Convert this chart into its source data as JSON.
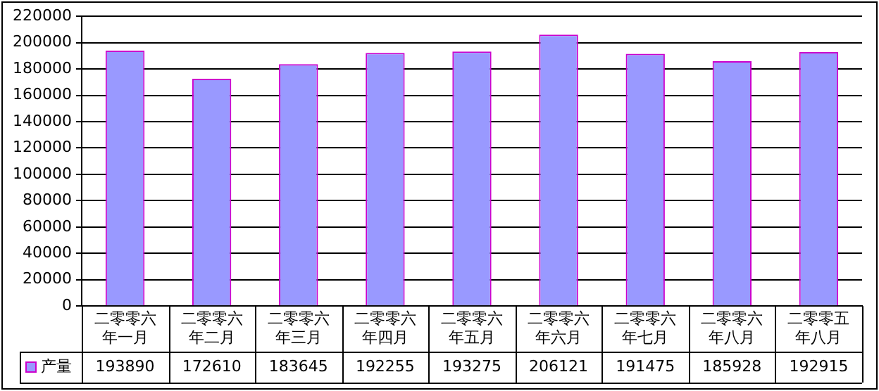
{
  "chart_data": {
    "type": "bar",
    "categories": [
      "二零零六年一月",
      "二零零六年二月",
      "二零零六年三月",
      "二零零六年四月",
      "二零零六年五月",
      "二零零六年六月",
      "二零零六年七月",
      "二零零六年八月",
      "二零零五年八月"
    ],
    "series": [
      {
        "name": "产量",
        "color": "#9999ff",
        "values": [
          193890,
          172610,
          183645,
          192255,
          193275,
          206121,
          191475,
          185928,
          192915
        ]
      }
    ],
    "ylim": [
      0,
      220000
    ],
    "yticks": [
      0,
      20000,
      40000,
      60000,
      80000,
      100000,
      120000,
      140000,
      160000,
      180000,
      200000,
      220000
    ],
    "grid": "y",
    "legend": "bottom",
    "data_labels": true
  }
}
